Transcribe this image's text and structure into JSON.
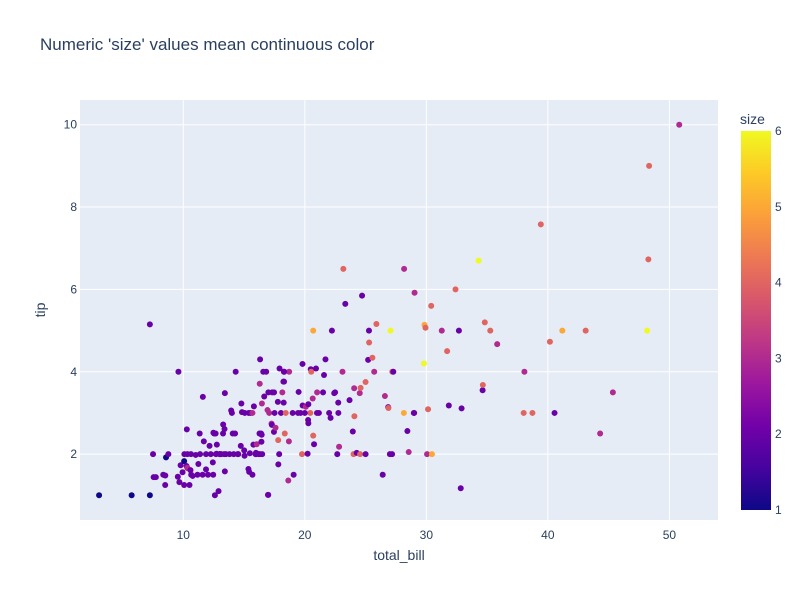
{
  "chart_data": {
    "type": "scatter",
    "title": "Numeric 'size' values mean continuous color",
    "xlabel": "total_bill",
    "ylabel": "tip",
    "xlim": [
      1.5,
      54
    ],
    "ylim": [
      0.4,
      10.6
    ],
    "xticks": [
      10,
      20,
      30,
      40,
      50
    ],
    "yticks": [
      2,
      4,
      6,
      8,
      10
    ],
    "grid": true,
    "colorbar": {
      "title": "size",
      "range": [
        1,
        6
      ],
      "ticks": [
        1,
        2,
        3,
        4,
        5,
        6
      ],
      "colorscale": [
        "#0d0887",
        "#46039f",
        "#7201a8",
        "#9c179e",
        "#bd3786",
        "#d8576b",
        "#ed7953",
        "#fb9f3a",
        "#fdca26",
        "#f0f921"
      ]
    },
    "plot_bgcolor": "#e5ecf6",
    "points": [
      [
        3.07,
        1.0,
        1
      ],
      [
        5.75,
        1.0,
        1
      ],
      [
        7.25,
        1.0,
        1
      ],
      [
        7.25,
        5.15,
        2
      ],
      [
        7.51,
        2.0,
        2
      ],
      [
        7.56,
        1.44,
        2
      ],
      [
        7.74,
        1.44,
        2
      ],
      [
        8.35,
        1.5,
        2
      ],
      [
        8.51,
        1.25,
        2
      ],
      [
        8.52,
        1.48,
        2
      ],
      [
        8.58,
        1.92,
        1
      ],
      [
        8.77,
        2.0,
        2
      ],
      [
        9.55,
        1.45,
        2
      ],
      [
        9.6,
        4.0,
        2
      ],
      [
        9.68,
        1.32,
        2
      ],
      [
        9.78,
        1.73,
        2
      ],
      [
        9.94,
        1.56,
        2
      ],
      [
        10.07,
        1.25,
        2
      ],
      [
        10.07,
        1.83,
        1
      ],
      [
        10.09,
        2.0,
        2
      ],
      [
        10.27,
        1.71,
        2
      ],
      [
        10.29,
        2.6,
        2
      ],
      [
        10.33,
        1.67,
        3
      ],
      [
        10.34,
        1.66,
        3
      ],
      [
        10.34,
        2.0,
        2
      ],
      [
        10.51,
        1.25,
        2
      ],
      [
        10.59,
        1.61,
        2
      ],
      [
        10.63,
        2.0,
        2
      ],
      [
        10.65,
        1.5,
        2
      ],
      [
        11.02,
        1.98,
        2
      ],
      [
        11.17,
        1.5,
        2
      ],
      [
        11.24,
        1.76,
        2
      ],
      [
        11.35,
        2.5,
        2
      ],
      [
        11.38,
        2.0,
        2
      ],
      [
        11.59,
        1.5,
        2
      ],
      [
        11.61,
        3.39,
        2
      ],
      [
        11.69,
        2.31,
        2
      ],
      [
        11.87,
        1.63,
        2
      ],
      [
        12.03,
        1.5,
        2
      ],
      [
        12.16,
        2.2,
        2
      ],
      [
        12.26,
        2.0,
        2
      ],
      [
        12.43,
        1.8,
        2
      ],
      [
        12.46,
        1.5,
        2
      ],
      [
        12.54,
        2.5,
        2
      ],
      [
        12.6,
        1.0,
        2
      ],
      [
        12.66,
        2.5,
        2
      ],
      [
        12.69,
        2.0,
        2
      ],
      [
        12.74,
        2.01,
        2
      ],
      [
        12.76,
        2.23,
        2
      ],
      [
        12.9,
        1.1,
        2
      ],
      [
        13.0,
        2.0,
        2
      ],
      [
        13.03,
        2.0,
        2
      ],
      [
        13.13,
        2.0,
        2
      ],
      [
        13.27,
        2.5,
        2
      ],
      [
        13.28,
        2.72,
        2
      ],
      [
        13.37,
        2.0,
        2
      ],
      [
        13.39,
        2.61,
        2
      ],
      [
        13.42,
        3.48,
        2
      ],
      [
        13.42,
        1.58,
        2
      ],
      [
        13.51,
        2.0,
        2
      ],
      [
        13.81,
        2.0,
        2
      ],
      [
        13.94,
        3.06,
        2
      ],
      [
        14.07,
        2.5,
        2
      ],
      [
        14.15,
        2.0,
        2
      ],
      [
        14.26,
        2.5,
        2
      ],
      [
        14.31,
        4.0,
        2
      ],
      [
        14.48,
        2.0,
        2
      ],
      [
        14.52,
        2.0,
        2
      ],
      [
        14.73,
        2.2,
        2
      ],
      [
        14.78,
        3.23,
        2
      ],
      [
        14.83,
        3.02,
        2
      ],
      [
        15.01,
        2.09,
        2
      ],
      [
        15.04,
        1.96,
        2
      ],
      [
        15.06,
        3.0,
        2
      ],
      [
        15.36,
        1.64,
        2
      ],
      [
        15.38,
        3.0,
        2
      ],
      [
        15.42,
        1.57,
        2
      ],
      [
        15.48,
        2.02,
        2
      ],
      [
        15.53,
        3.0,
        2
      ],
      [
        15.69,
        3.0,
        3
      ],
      [
        15.69,
        1.5,
        2
      ],
      [
        15.77,
        2.23,
        2
      ],
      [
        15.81,
        3.16,
        2
      ],
      [
        15.98,
        2.03,
        2
      ],
      [
        16.0,
        2.0,
        2
      ],
      [
        16.04,
        2.24,
        3
      ],
      [
        16.21,
        2.0,
        2
      ],
      [
        16.27,
        2.5,
        2
      ],
      [
        16.29,
        3.71,
        3
      ],
      [
        16.31,
        2.0,
        2
      ],
      [
        16.32,
        4.3,
        2
      ],
      [
        16.4,
        2.5,
        2
      ],
      [
        16.45,
        2.47,
        2
      ],
      [
        16.47,
        3.23,
        3
      ],
      [
        16.49,
        2.0,
        2
      ],
      [
        16.58,
        4.0,
        2
      ],
      [
        16.66,
        3.4,
        2
      ],
      [
        16.82,
        4.0,
        2
      ],
      [
        16.93,
        3.07,
        3
      ],
      [
        16.97,
        1.01,
        2
      ],
      [
        16.99,
        1.01,
        2
      ],
      [
        17.07,
        3.0,
        3
      ],
      [
        17.26,
        2.74,
        3
      ],
      [
        17.29,
        2.71,
        2
      ],
      [
        17.31,
        3.5,
        2
      ],
      [
        17.46,
        2.54,
        2
      ],
      [
        17.47,
        3.5,
        2
      ],
      [
        17.51,
        3.0,
        2
      ],
      [
        17.59,
        2.64,
        3
      ],
      [
        17.78,
        3.27,
        2
      ],
      [
        17.81,
        2.34,
        4
      ],
      [
        17.82,
        1.75,
        2
      ],
      [
        17.89,
        2.0,
        2
      ],
      [
        17.92,
        4.08,
        2
      ],
      [
        18.04,
        3.0,
        2
      ],
      [
        18.15,
        3.5,
        3
      ],
      [
        18.24,
        3.76,
        2
      ],
      [
        18.26,
        3.25,
        2
      ],
      [
        18.28,
        4.0,
        2
      ],
      [
        18.29,
        3.76,
        2
      ],
      [
        18.35,
        2.5,
        4
      ],
      [
        18.43,
        3.0,
        4
      ],
      [
        18.64,
        1.36,
        3
      ],
      [
        18.69,
        2.31,
        3
      ],
      [
        18.71,
        4.0,
        3
      ],
      [
        19.08,
        1.5,
        2
      ],
      [
        19.44,
        3.0,
        2
      ],
      [
        19.49,
        3.51,
        2
      ],
      [
        19.65,
        3.0,
        2
      ],
      [
        19.77,
        2.0,
        4
      ],
      [
        19.81,
        4.19,
        2
      ],
      [
        19.82,
        3.18,
        2
      ],
      [
        20.08,
        3.15,
        3
      ],
      [
        20.23,
        2.01,
        2
      ],
      [
        20.27,
        2.83,
        2
      ],
      [
        20.29,
        3.21,
        2
      ],
      [
        20.29,
        2.75,
        2
      ],
      [
        20.45,
        3.0,
        4
      ],
      [
        20.49,
        4.06,
        2
      ],
      [
        20.53,
        4.0,
        4
      ],
      [
        20.65,
        3.35,
        3
      ],
      [
        20.69,
        2.45,
        4
      ],
      [
        20.76,
        2.24,
        2
      ],
      [
        20.92,
        4.08,
        2
      ],
      [
        20.69,
        5.0,
        5
      ],
      [
        21.01,
        3.5,
        3
      ],
      [
        21.16,
        3.0,
        2
      ],
      [
        21.5,
        3.5,
        2
      ],
      [
        21.58,
        3.92,
        2
      ],
      [
        21.7,
        4.3,
        2
      ],
      [
        22.12,
        2.88,
        2
      ],
      [
        22.23,
        5.0,
        2
      ],
      [
        22.42,
        3.48,
        2
      ],
      [
        22.49,
        3.5,
        2
      ],
      [
        22.67,
        2.0,
        2
      ],
      [
        22.75,
        3.25,
        2
      ],
      [
        22.76,
        3.0,
        2
      ],
      [
        22.82,
        2.18,
        3
      ],
      [
        23.1,
        4.0,
        3
      ],
      [
        23.17,
        6.5,
        4
      ],
      [
        23.33,
        5.65,
        2
      ],
      [
        23.68,
        3.31,
        2
      ],
      [
        23.95,
        2.55,
        2
      ],
      [
        24.01,
        2.0,
        4
      ],
      [
        24.06,
        3.6,
        3
      ],
      [
        24.08,
        2.92,
        4
      ],
      [
        24.27,
        2.03,
        2
      ],
      [
        24.52,
        3.48,
        3
      ],
      [
        24.55,
        2.0,
        4
      ],
      [
        24.59,
        3.61,
        4
      ],
      [
        24.71,
        5.85,
        2
      ],
      [
        25.0,
        3.75,
        4
      ],
      [
        25.21,
        4.29,
        2
      ],
      [
        25.28,
        5.0,
        2
      ],
      [
        25.29,
        4.71,
        4
      ],
      [
        25.56,
        4.34,
        4
      ],
      [
        25.71,
        4.0,
        3
      ],
      [
        25.89,
        5.16,
        4
      ],
      [
        26.41,
        1.5,
        2
      ],
      [
        26.59,
        3.41,
        3
      ],
      [
        26.86,
        3.14,
        2
      ],
      [
        26.88,
        3.12,
        4
      ],
      [
        27.05,
        5.0,
        6
      ],
      [
        27.18,
        2.0,
        2
      ],
      [
        27.2,
        4.0,
        4
      ],
      [
        27.28,
        4.0,
        2
      ],
      [
        28.15,
        3.0,
        5
      ],
      [
        28.17,
        6.5,
        3
      ],
      [
        28.44,
        2.56,
        2
      ],
      [
        28.55,
        2.05,
        3
      ],
      [
        28.97,
        3.0,
        2
      ],
      [
        29.03,
        5.92,
        3
      ],
      [
        29.8,
        4.2,
        6
      ],
      [
        29.85,
        5.14,
        5
      ],
      [
        29.93,
        5.07,
        4
      ],
      [
        30.06,
        2.0,
        3
      ],
      [
        30.14,
        3.09,
        4
      ],
      [
        30.4,
        5.6,
        4
      ],
      [
        30.46,
        2.0,
        5
      ],
      [
        31.27,
        5.0,
        3
      ],
      [
        31.71,
        4.5,
        4
      ],
      [
        31.85,
        3.18,
        2
      ],
      [
        32.4,
        6.0,
        4
      ],
      [
        32.68,
        5.0,
        2
      ],
      [
        32.83,
        1.17,
        2
      ],
      [
        32.9,
        3.11,
        2
      ],
      [
        34.3,
        6.7,
        6
      ],
      [
        34.63,
        3.55,
        2
      ],
      [
        34.65,
        3.68,
        4
      ],
      [
        34.81,
        5.2,
        4
      ],
      [
        35.26,
        5.0,
        4
      ],
      [
        35.83,
        4.67,
        3
      ],
      [
        38.01,
        3.0,
        4
      ],
      [
        38.07,
        4.0,
        3
      ],
      [
        38.73,
        3.0,
        4
      ],
      [
        39.42,
        7.58,
        4
      ],
      [
        40.17,
        4.73,
        4
      ],
      [
        40.55,
        3.0,
        2
      ],
      [
        41.19,
        5.0,
        5
      ],
      [
        43.11,
        5.0,
        4
      ],
      [
        44.3,
        2.5,
        3
      ],
      [
        45.35,
        3.5,
        3
      ],
      [
        48.17,
        5.0,
        6
      ],
      [
        48.27,
        6.73,
        4
      ],
      [
        48.33,
        9.0,
        4
      ],
      [
        50.81,
        10.0,
        3
      ],
      [
        10.77,
        1.47,
        2
      ],
      [
        11.87,
        2.0,
        2
      ],
      [
        12.48,
        2.52,
        2
      ],
      [
        13.0,
        2.0,
        2
      ],
      [
        14.0,
        3.0,
        2
      ],
      [
        15.95,
        2.0,
        2
      ],
      [
        16.43,
        2.3,
        2
      ],
      [
        17.0,
        3.5,
        2
      ],
      [
        18.3,
        4.0,
        2
      ],
      [
        19.0,
        3.0,
        2
      ],
      [
        20.0,
        3.0,
        2
      ],
      [
        21.0,
        3.0,
        2
      ],
      [
        22.0,
        3.0,
        2
      ],
      [
        25.0,
        2.0,
        2
      ],
      [
        27.0,
        2.0,
        2
      ],
      [
        29.0,
        3.0,
        2
      ]
    ]
  }
}
